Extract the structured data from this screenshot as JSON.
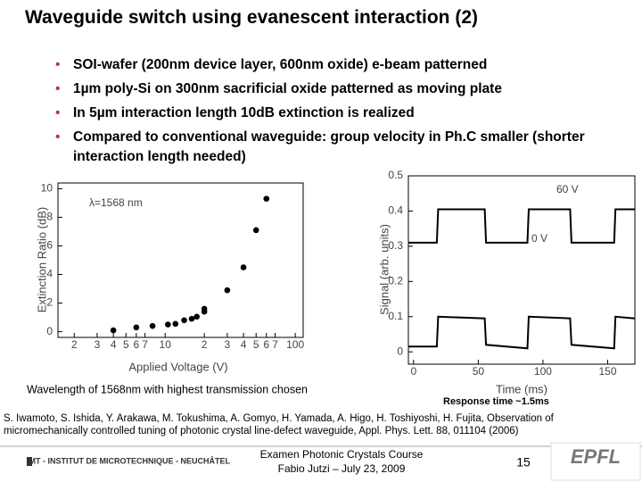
{
  "title": "Waveguide switch using evanescent interaction (2)",
  "bullets": [
    "SOI-wafer (200nm device layer, 600nm oxide) e-beam patterned",
    "1µm poly-Si on 300nm sacrificial oxide patterned as moving plate",
    "In 5µm interaction length 10dB extinction is realized",
    "Compared to conventional waveguide: group velocity in Ph.C smaller (shorter interaction length needed)"
  ],
  "captions": [
    "Wavelength of 1568nm with highest transmission chosen",
    "Response time ~1.5ms"
  ],
  "reference": "S. Iwamoto, S. Ishida, Y. Arakawa, M. Tokushima, A. Gomyo, H. Yamada, A. Higo, H. Toshiyoshi, H. Fujita, Observation of micromechanically controlled tuning of photonic crystal line-defect waveguide, Appl. Phys. Lett. 88, 011104 (2006)",
  "footer": {
    "institute": "IMT - INSTITUT DE MICROTECHNIQUE - NEUCHÂTEL",
    "course": "Examen Photonic Crystals Course",
    "author": "Fabio Jutzi – July 23, 2009",
    "page": "15",
    "logo": "EPFL"
  },
  "chart_data": [
    {
      "type": "scatter",
      "xlabel": "Applied Voltage (V)",
      "ylabel": "Extinction Ratio (dB)",
      "annotations": [
        "λ=1568 nm"
      ],
      "xscale": "log",
      "xlim": [
        1.5,
        115
      ],
      "ylim": [
        -0.4,
        10.4
      ],
      "color": "#000000",
      "xticks": [
        2,
        3,
        4,
        5,
        6,
        7,
        10,
        {
          "value": 20,
          "label": "2"
        },
        {
          "value": 30,
          "label": "3"
        },
        {
          "value": 40,
          "label": "4"
        },
        {
          "value": 50,
          "label": "5"
        },
        {
          "value": 60,
          "label": "6"
        },
        {
          "value": 70,
          "label": "7"
        },
        100
      ],
      "yticks": [
        0,
        2,
        4,
        6,
        8,
        10
      ],
      "x": [
        4,
        6,
        8,
        10.5,
        12,
        14,
        16,
        17.5,
        20,
        20,
        30,
        40,
        50,
        60
      ],
      "values": [
        0.1,
        0.3,
        0.4,
        0.5,
        0.55,
        0.8,
        0.9,
        1.05,
        1.4,
        1.6,
        2.9,
        4.5,
        7.1,
        9.3
      ]
    },
    {
      "type": "line",
      "xlabel": "Time (ms)",
      "ylabel": "Signal (arb. units)",
      "annotations": [
        "60 V",
        "0 V"
      ],
      "xlim": [
        -4,
        171
      ],
      "ylim": [
        -0.035,
        0.5
      ],
      "xticks": [
        0,
        50,
        100,
        150
      ],
      "yticks": [
        0,
        0.1,
        0.2,
        0.3,
        0.4,
        0.5
      ],
      "x": [
        -4,
        18,
        19,
        55,
        56,
        88,
        89,
        121,
        122,
        155,
        156,
        171
      ],
      "series": [
        {
          "color": "#000000",
          "values": [
            0.31,
            0.31,
            0.405,
            0.405,
            0.31,
            0.31,
            0.405,
            0.405,
            0.31,
            0.31,
            0.405,
            0.405
          ]
        },
        {
          "color": "#000000",
          "values": [
            0.015,
            0.015,
            0.1,
            0.095,
            0.02,
            0.01,
            0.1,
            0.095,
            0.02,
            0.01,
            0.1,
            0.095
          ]
        }
      ]
    }
  ]
}
